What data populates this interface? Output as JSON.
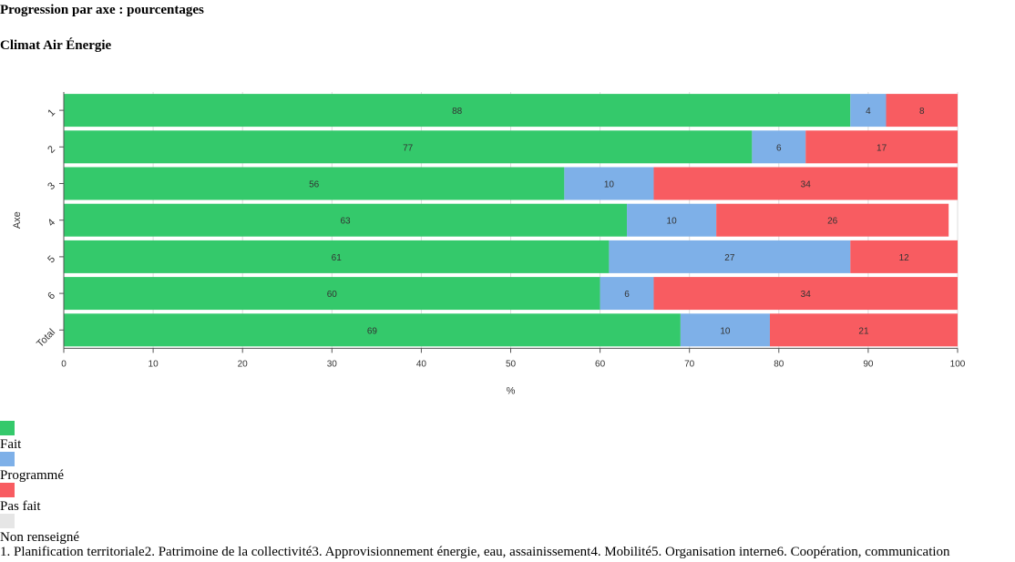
{
  "title": "Progression par axe : pourcentages",
  "subtitle": "Climat Air Énergie",
  "colors": {
    "fait": "#34c96b",
    "programme": "#7eb0e8",
    "pas_fait": "#f85c61",
    "non_renseigne": "#e6e6e6"
  },
  "legend": [
    {
      "label": "Fait",
      "color": "#34c96b"
    },
    {
      "label": "Programmé",
      "color": "#7eb0e8"
    },
    {
      "label": "Pas fait",
      "color": "#f85c61"
    },
    {
      "label": "Non renseigné",
      "color": "#e6e6e6"
    }
  ],
  "axis_notes": [
    "1. Planification territoriale",
    "2. Patrimoine de la collectivité",
    "3. Approvisionnement énergie, eau, assainissement",
    "4. Mobilité",
    "5. Organisation interne",
    "6. Coopération, communication"
  ],
  "chart_data": {
    "type": "bar",
    "orientation": "horizontal",
    "stacked": true,
    "title": "Progression par axe : pourcentages",
    "subtitle": "Climat Air Énergie",
    "xlabel": "%",
    "ylabel": "Axe",
    "xlim": [
      0,
      100
    ],
    "xticks": [
      0,
      10,
      20,
      30,
      40,
      50,
      60,
      70,
      80,
      90,
      100
    ],
    "categories": [
      "1",
      "2",
      "3",
      "4",
      "5",
      "6",
      "Total"
    ],
    "series": [
      {
        "name": "Fait",
        "color": "#34c96b",
        "values": [
          88,
          77,
          56,
          63,
          61,
          60,
          69
        ]
      },
      {
        "name": "Programmé",
        "color": "#7eb0e8",
        "values": [
          4,
          6,
          10,
          10,
          27,
          6,
          10
        ]
      },
      {
        "name": "Pas fait",
        "color": "#f85c61",
        "values": [
          8,
          17,
          34,
          26,
          12,
          34,
          21
        ]
      }
    ],
    "grid": true,
    "legend_position": "bottom"
  }
}
